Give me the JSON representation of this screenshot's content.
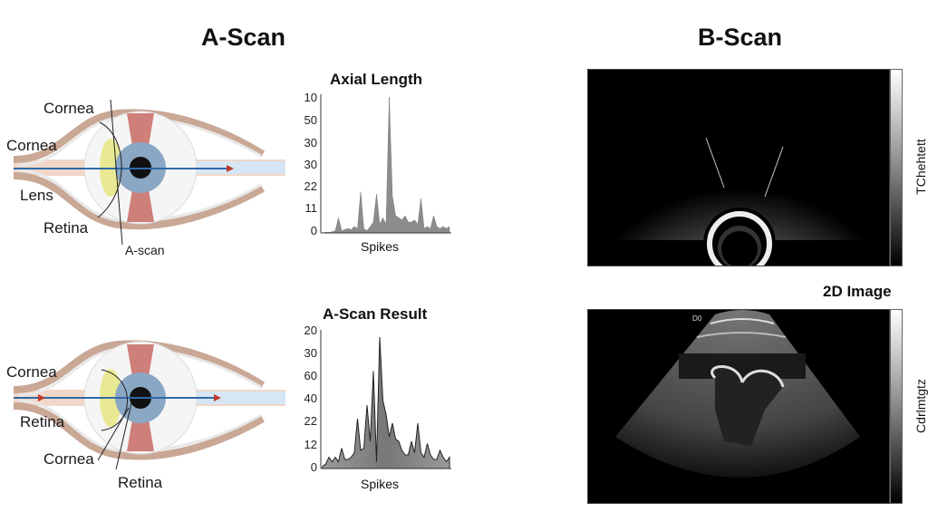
{
  "left_section": {
    "title": "A-Scan",
    "diagram_top": {
      "labels": [
        "Cornea",
        "Cornea",
        "Lens",
        "Retina",
        "A-scan"
      ]
    },
    "chart_top": {
      "title": "Axial Length",
      "xlabel": "Spikes",
      "yticks": [
        "10",
        "50",
        "30",
        "30",
        "22",
        "11",
        "0"
      ]
    },
    "diagram_bottom": {
      "labels": [
        "Cornea",
        "Retina",
        "Cornea",
        "Retina"
      ]
    },
    "chart_bottom": {
      "title": "A-Scan Result",
      "xlabel": "Spikes",
      "yticks": [
        "20",
        "30",
        "60",
        "40",
        "22",
        "12",
        "0"
      ]
    }
  },
  "right_section": {
    "title": "B-Scan",
    "top_panel": {
      "colorbar_label": "TChehtett"
    },
    "bottom_panel": {
      "title": "2D Image",
      "colorbar_label": "Cdrlmtgtz",
      "corner_mark": "D0"
    }
  },
  "chart_data": [
    {
      "type": "area",
      "title": "Axial Length",
      "xlabel": "Spikes",
      "ylabel": "",
      "ytick_labels": [
        "0",
        "11",
        "22",
        "30",
        "30",
        "50",
        "10"
      ],
      "x": [
        0,
        1,
        2,
        3,
        4,
        5,
        6,
        7,
        8,
        9,
        10,
        11,
        12,
        13,
        14,
        15,
        16,
        17,
        18,
        19,
        20,
        21,
        22,
        23,
        24,
        25,
        26,
        27,
        28,
        29,
        30,
        31,
        32,
        33,
        34,
        35,
        36,
        37,
        38,
        39,
        40
      ],
      "values": [
        0,
        0.3,
        0.2,
        0.5,
        1,
        7,
        1,
        1.5,
        2,
        1.5,
        3,
        2,
        19,
        2,
        1,
        3,
        5,
        18,
        4,
        7,
        4,
        63,
        17,
        8,
        7,
        6,
        8,
        5,
        5,
        6,
        4,
        16,
        2,
        3,
        2,
        8,
        3,
        2,
        3,
        2,
        3
      ],
      "grid": false
    },
    {
      "type": "area",
      "title": "A-Scan Result",
      "xlabel": "Spikes",
      "ylabel": "",
      "ytick_labels": [
        "0",
        "12",
        "22",
        "40",
        "60",
        "30",
        "20"
      ],
      "x": [
        0,
        1,
        2,
        3,
        4,
        5,
        6,
        7,
        8,
        9,
        10,
        11,
        12,
        13,
        14,
        15,
        16,
        17,
        18,
        19,
        20,
        21,
        22,
        23,
        24,
        25,
        26,
        27,
        28,
        29,
        30,
        31,
        32,
        33,
        34,
        35,
        36,
        37,
        38,
        39,
        40
      ],
      "values": [
        1,
        2,
        5,
        3,
        5,
        3,
        9,
        4,
        4,
        5,
        7,
        22,
        8,
        9,
        28,
        12,
        43,
        3,
        58,
        30,
        24,
        14,
        20,
        13,
        12,
        8,
        6,
        6,
        12,
        7,
        20,
        7,
        5,
        11,
        6,
        4,
        4,
        8,
        5,
        3,
        5
      ],
      "grid": false
    }
  ]
}
